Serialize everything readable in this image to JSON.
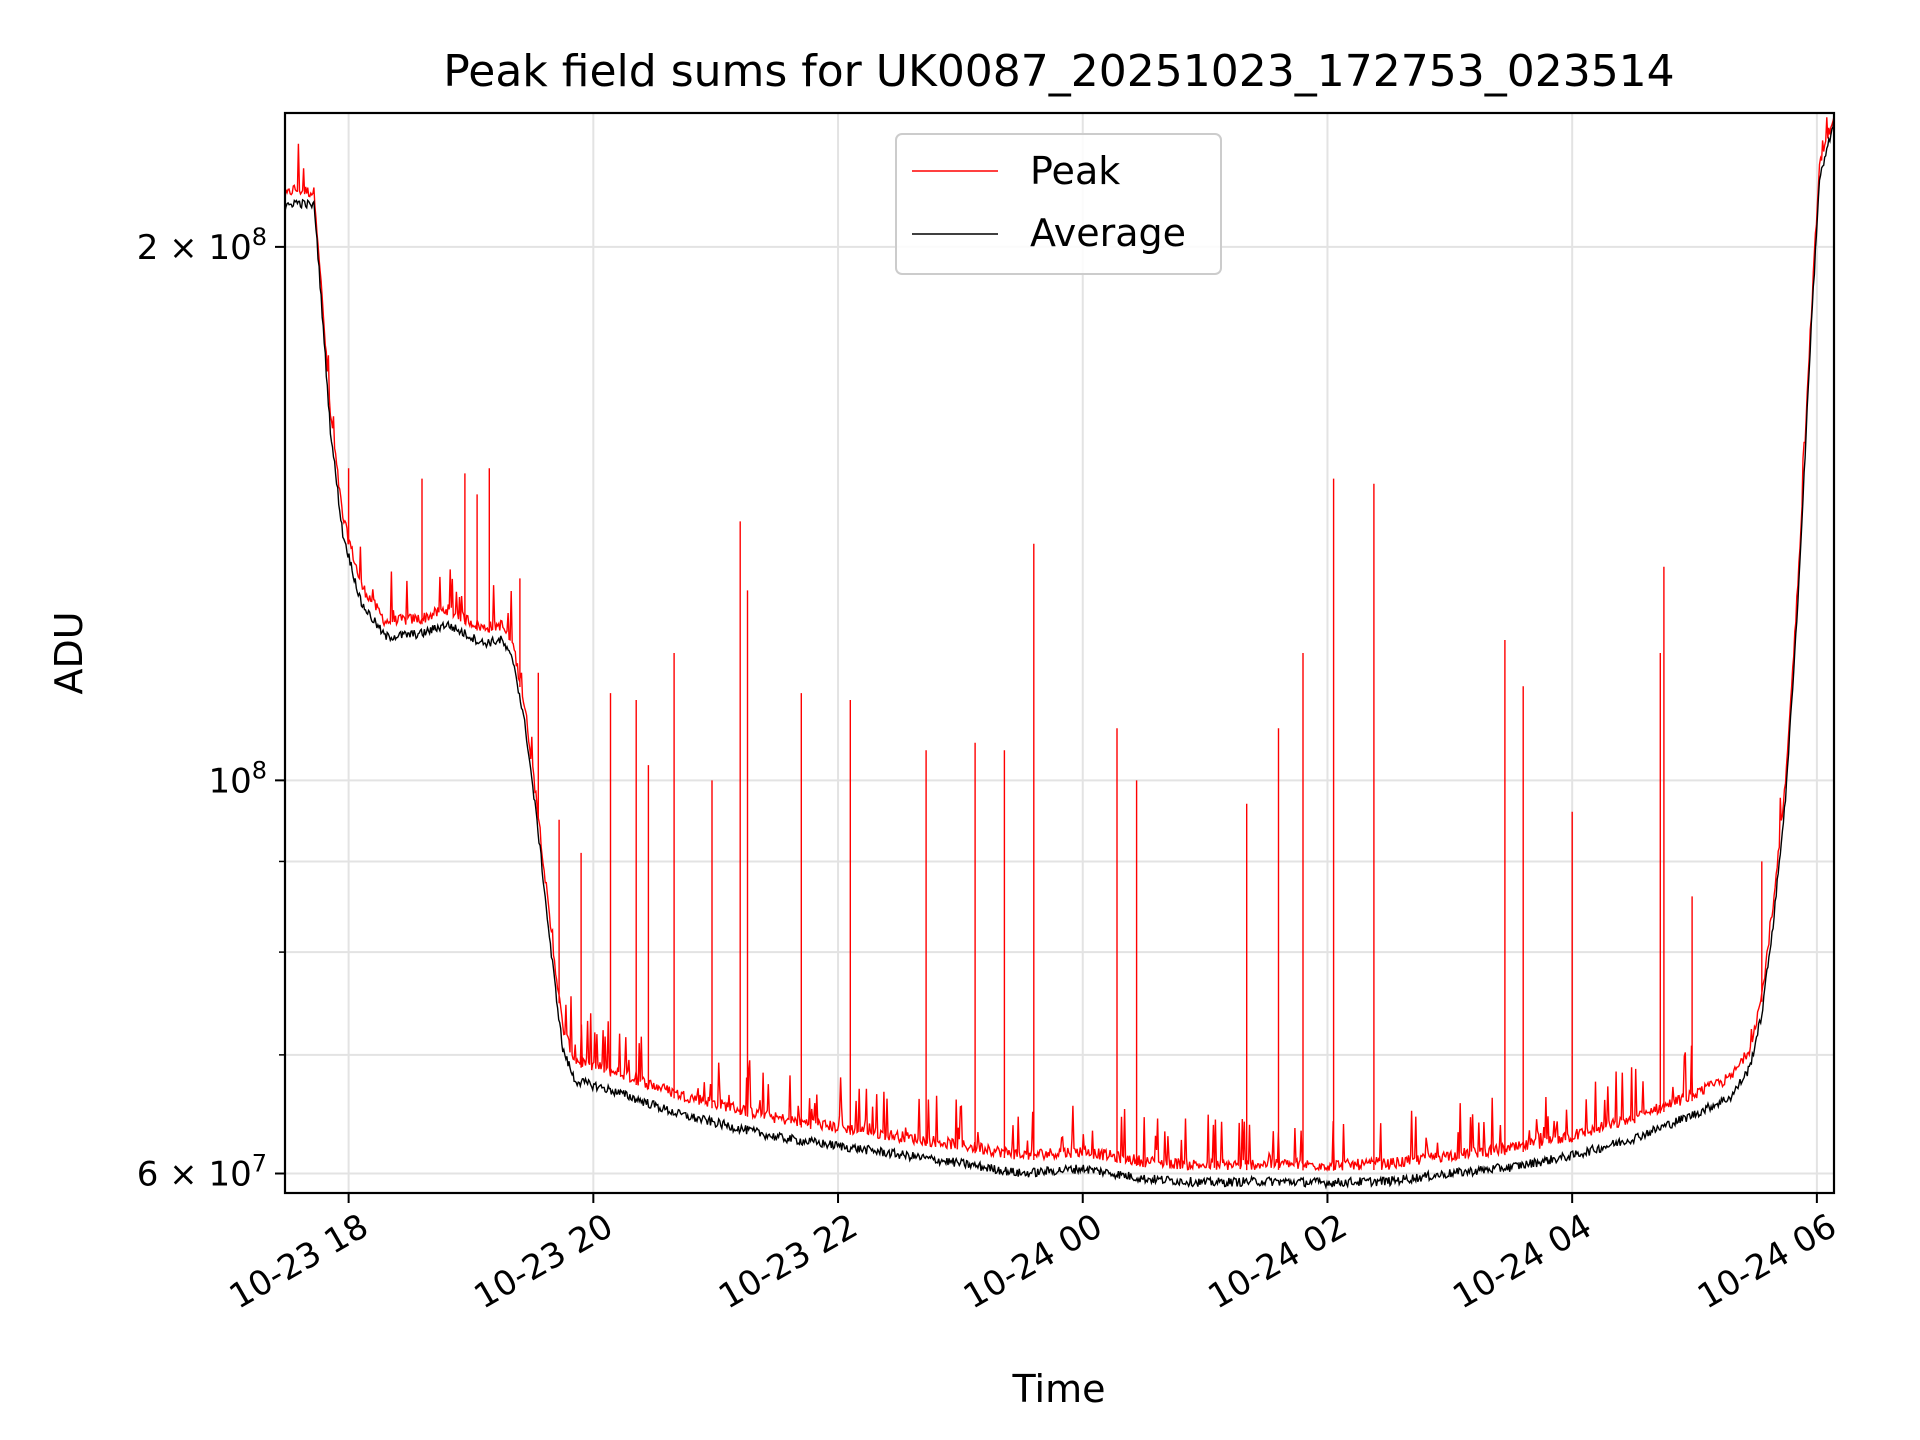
{
  "chart_data": {
    "type": "line",
    "title": "Peak field sums for UK0087_20251023_172753_023514",
    "xlabel": "Time",
    "ylabel": "ADU",
    "yscale": "log",
    "ylim": [
      58500000,
      238000000
    ],
    "xlim_hours": [
      17.48,
      30.14
    ],
    "grid": true,
    "legend_position": "upper center",
    "colors": {
      "peak": "#ff0000",
      "average": "#000000",
      "grid": "#e3e3e3",
      "legend_border": "#cccccc"
    },
    "x_ticks": [
      {
        "hour": 18,
        "label": "10-23 18"
      },
      {
        "hour": 20,
        "label": "10-23 20"
      },
      {
        "hour": 22,
        "label": "10-23 22"
      },
      {
        "hour": 24,
        "label": "10-24 00"
      },
      {
        "hour": 26,
        "label": "10-24 02"
      },
      {
        "hour": 28,
        "label": "10-24 04"
      },
      {
        "hour": 30,
        "label": "10-24 06"
      }
    ],
    "y_major_ticks": [
      {
        "value": 60000000,
        "base": "6 × 10",
        "exp": "7"
      },
      {
        "value": 100000000,
        "base": "10",
        "exp": "8"
      },
      {
        "value": 200000000,
        "base": "2 × 10",
        "exp": "8"
      }
    ],
    "y_minor_grid": [
      70000000,
      80000000,
      90000000
    ],
    "series": [
      {
        "name": "Peak",
        "baseline_anchors": [
          [
            17.48,
            212000000
          ],
          [
            17.55,
            214000000
          ],
          [
            17.72,
            213000000
          ],
          [
            17.75,
            200000000
          ],
          [
            17.85,
            160000000
          ],
          [
            17.95,
            140000000
          ],
          [
            18.1,
            128000000
          ],
          [
            18.3,
            122000000
          ],
          [
            18.6,
            122500000
          ],
          [
            18.8,
            124000000
          ],
          [
            19.1,
            121000000
          ],
          [
            19.25,
            121500000
          ],
          [
            19.35,
            118000000
          ],
          [
            19.45,
            108000000
          ],
          [
            19.55,
            95000000
          ],
          [
            19.65,
            82000000
          ],
          [
            19.75,
            72000000
          ],
          [
            19.85,
            69000000
          ],
          [
            20.1,
            68200000
          ],
          [
            20.3,
            67500000
          ],
          [
            20.7,
            66000000
          ],
          [
            21.5,
            64000000
          ],
          [
            22.5,
            62500000
          ],
          [
            23.0,
            61800000
          ],
          [
            23.5,
            61000000
          ],
          [
            24.0,
            61300000
          ],
          [
            24.5,
            60500000
          ],
          [
            25.0,
            60200000
          ],
          [
            25.5,
            60300000
          ],
          [
            26.0,
            60200000
          ],
          [
            26.5,
            60300000
          ],
          [
            27.0,
            61000000
          ],
          [
            27.5,
            61500000
          ],
          [
            28.0,
            62500000
          ],
          [
            28.5,
            64000000
          ],
          [
            29.0,
            66000000
          ],
          [
            29.3,
            67500000
          ],
          [
            29.45,
            70000000
          ],
          [
            29.55,
            75000000
          ],
          [
            29.65,
            85000000
          ],
          [
            29.75,
            100000000
          ],
          [
            29.85,
            130000000
          ],
          [
            29.95,
            180000000
          ],
          [
            30.02,
            220000000
          ],
          [
            30.14,
            236000000
          ]
        ],
        "spikes": [
          [
            18.0,
            150000000
          ],
          [
            18.6,
            148000000
          ],
          [
            18.95,
            149000000
          ],
          [
            19.05,
            145000000
          ],
          [
            19.15,
            150000000
          ],
          [
            19.4,
            130000000
          ],
          [
            19.55,
            115000000
          ],
          [
            19.72,
            95000000
          ],
          [
            19.9,
            91000000
          ],
          [
            20.14,
            112000000
          ],
          [
            20.35,
            111000000
          ],
          [
            20.45,
            102000000
          ],
          [
            20.66,
            118000000
          ],
          [
            20.97,
            100000000
          ],
          [
            21.2,
            140000000
          ],
          [
            21.26,
            128000000
          ],
          [
            21.7,
            112000000
          ],
          [
            22.1,
            111000000
          ],
          [
            22.72,
            104000000
          ],
          [
            23.12,
            105000000
          ],
          [
            23.36,
            104000000
          ],
          [
            23.6,
            136000000
          ],
          [
            24.28,
            107000000
          ],
          [
            24.44,
            100000000
          ],
          [
            25.34,
            97000000
          ],
          [
            25.6,
            107000000
          ],
          [
            25.8,
            118000000
          ],
          [
            26.05,
            148000000
          ],
          [
            26.38,
            147000000
          ],
          [
            27.45,
            120000000
          ],
          [
            27.6,
            113000000
          ],
          [
            28.0,
            96000000
          ],
          [
            28.72,
            118000000
          ],
          [
            28.75,
            132000000
          ],
          [
            28.98,
            86000000
          ],
          [
            29.55,
            90000000
          ]
        ]
      },
      {
        "name": "Average",
        "baseline_anchors": [
          [
            17.48,
            210000000
          ],
          [
            17.55,
            212000000
          ],
          [
            17.72,
            211000000
          ],
          [
            17.75,
            198000000
          ],
          [
            17.85,
            158000000
          ],
          [
            17.95,
            138000000
          ],
          [
            18.1,
            126000000
          ],
          [
            18.3,
            120500000
          ],
          [
            18.6,
            121000000
          ],
          [
            18.8,
            122500000
          ],
          [
            19.1,
            119500000
          ],
          [
            19.25,
            120000000
          ],
          [
            19.35,
            116500000
          ],
          [
            19.45,
            106500000
          ],
          [
            19.55,
            93500000
          ],
          [
            19.65,
            80500000
          ],
          [
            19.75,
            70500000
          ],
          [
            19.85,
            67700000
          ],
          [
            20.1,
            67000000
          ],
          [
            20.3,
            66300000
          ],
          [
            20.7,
            64800000
          ],
          [
            21.5,
            62900000
          ],
          [
            22.5,
            61500000
          ],
          [
            23.0,
            60800000
          ],
          [
            23.5,
            60000000
          ],
          [
            24.0,
            60400000
          ],
          [
            24.5,
            59600000
          ],
          [
            25.0,
            59300000
          ],
          [
            25.5,
            59400000
          ],
          [
            26.0,
            59300000
          ],
          [
            26.5,
            59400000
          ],
          [
            27.0,
            60000000
          ],
          [
            27.5,
            60500000
          ],
          [
            28.0,
            61400000
          ],
          [
            28.5,
            62800000
          ],
          [
            29.0,
            64800000
          ],
          [
            29.3,
            66300000
          ],
          [
            29.45,
            68800000
          ],
          [
            29.55,
            73800000
          ],
          [
            29.65,
            83800000
          ],
          [
            29.75,
            98800000
          ],
          [
            29.85,
            128000000
          ],
          [
            29.95,
            178000000
          ],
          [
            30.02,
            218000000
          ],
          [
            30.14,
            235000000
          ]
        ]
      }
    ]
  }
}
